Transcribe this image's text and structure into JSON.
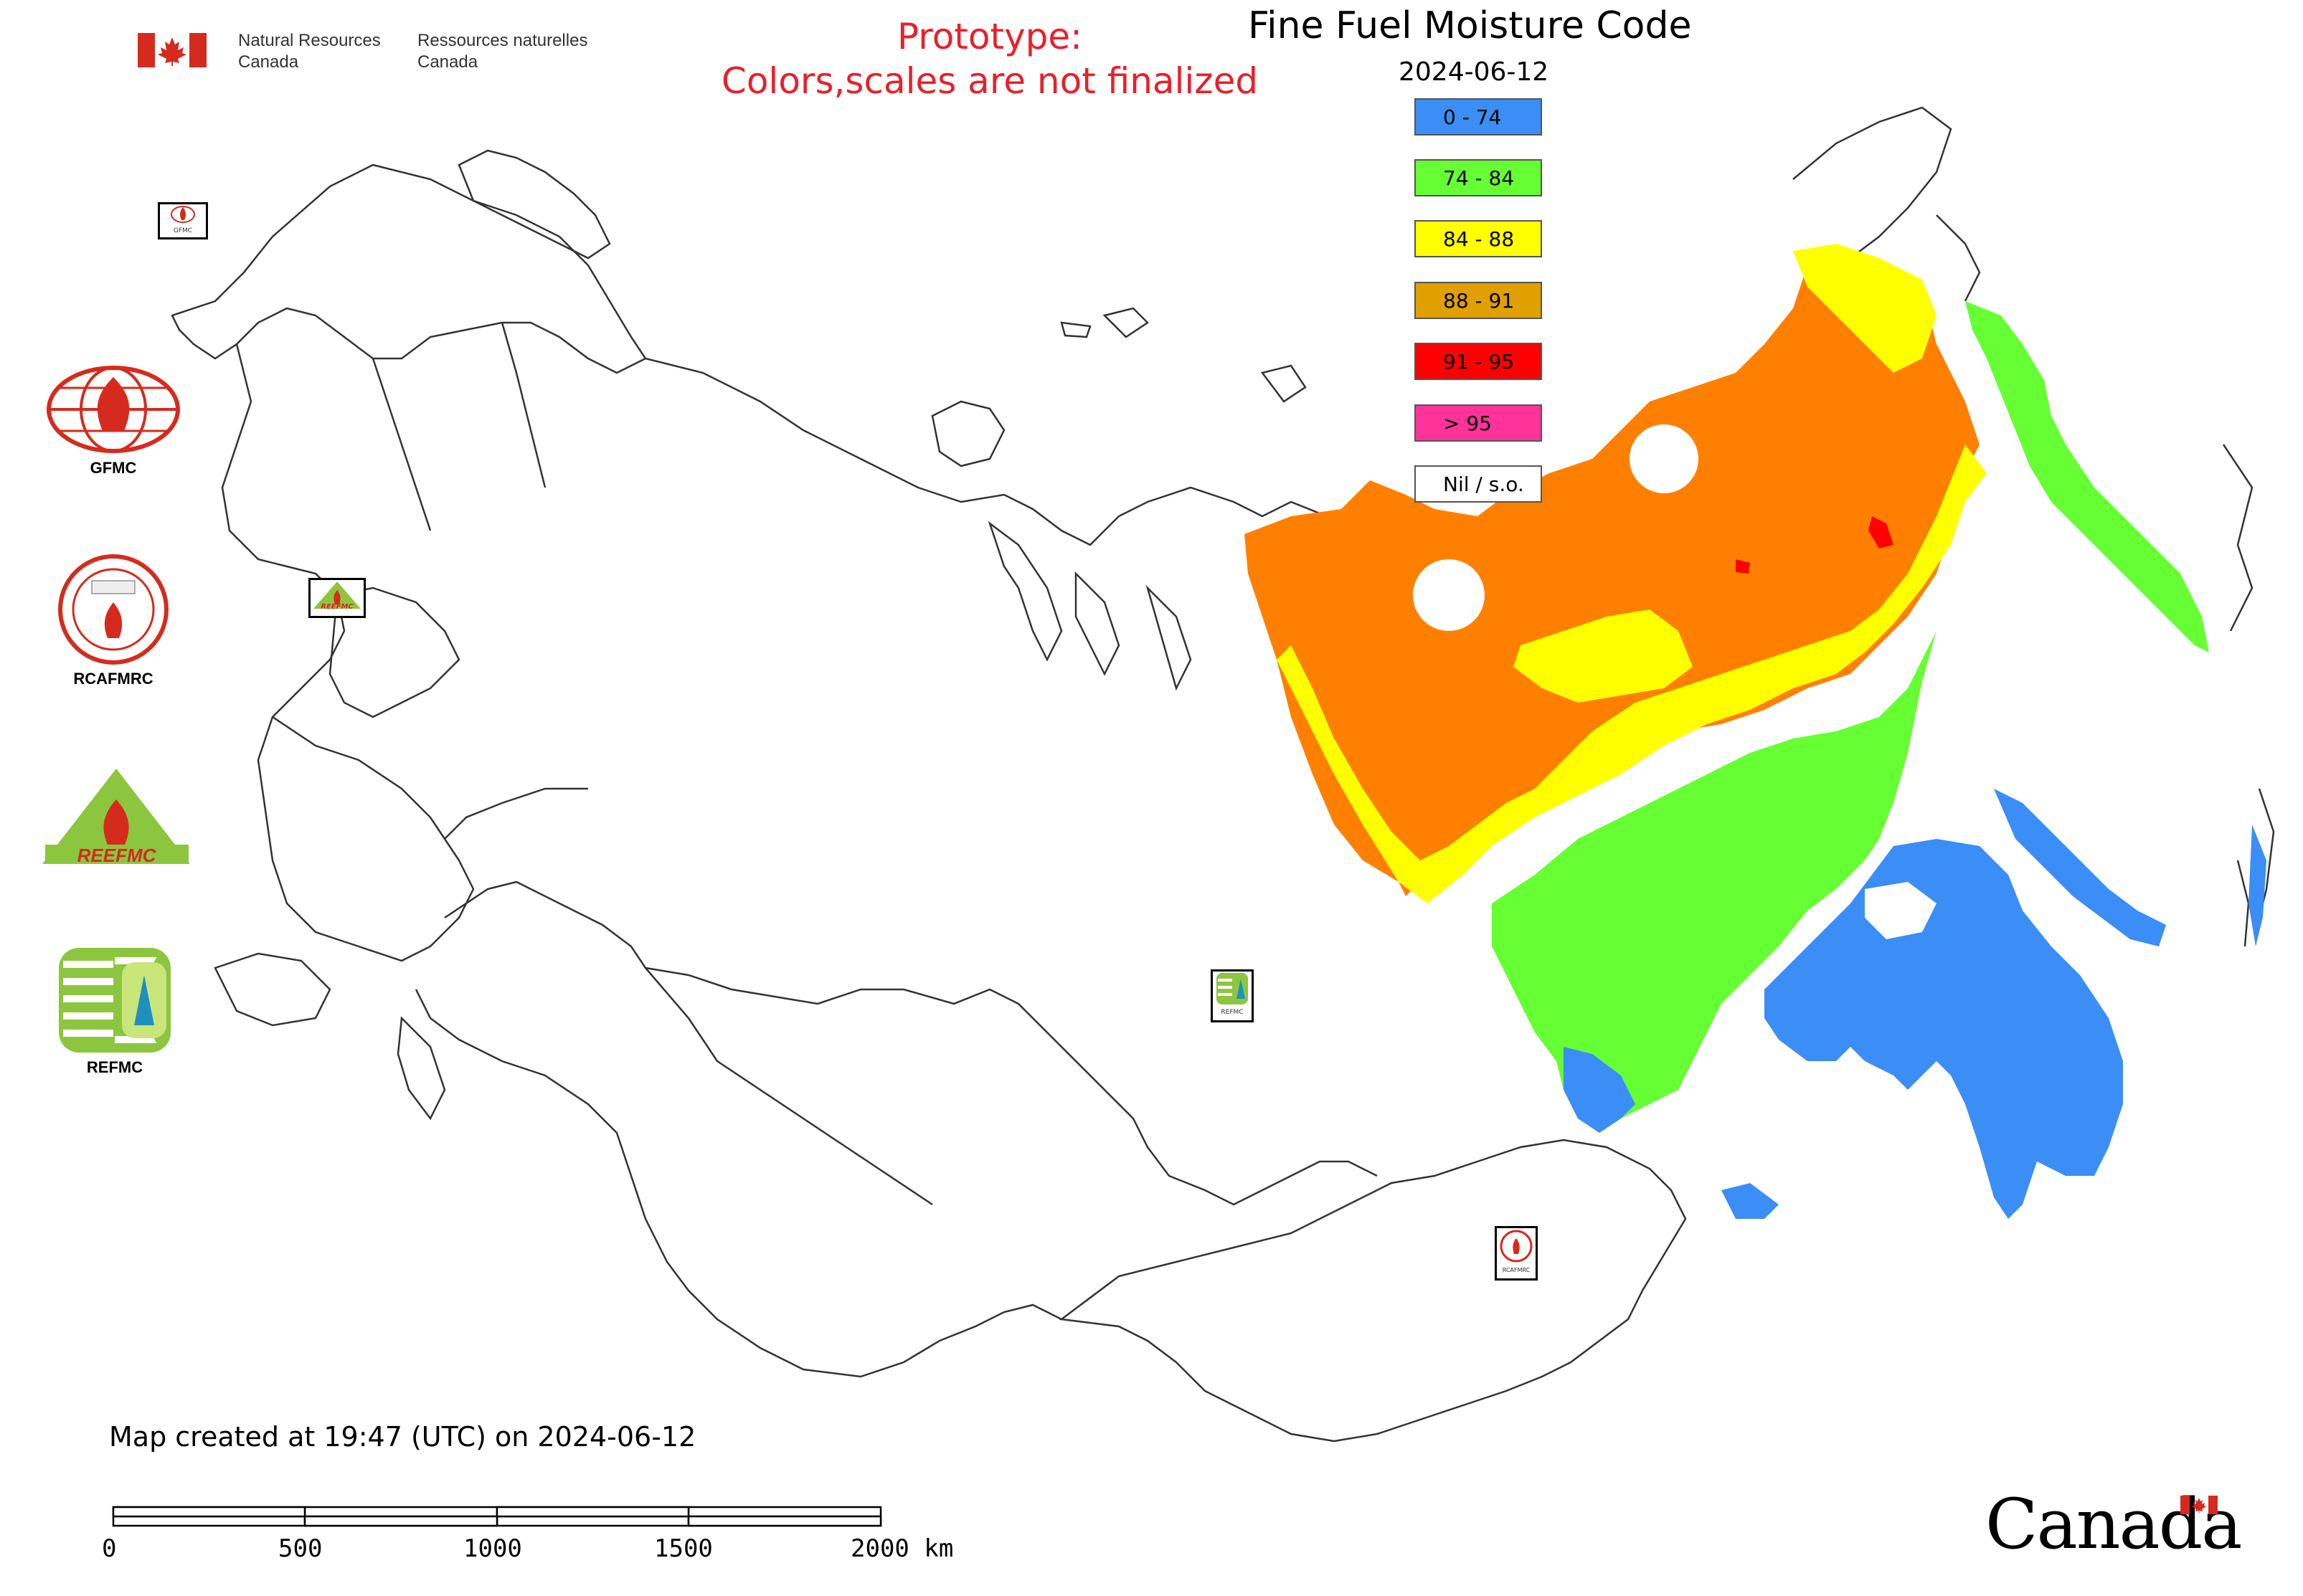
{
  "header": {
    "agency_en": "Natural Resources",
    "agency_en_2": "Canada",
    "agency_fr": "Ressources naturelles",
    "agency_fr_2": "Canada",
    "title": "Fine Fuel Moisture Code",
    "date": "2024-06-12",
    "prototype_line1": "Prototype:",
    "prototype_line2": "Colors,scales are not finalized"
  },
  "legend": {
    "items": [
      {
        "label": "0 - 74",
        "color": "#3a8ef6"
      },
      {
        "label": "74 - 84",
        "color": "#66ff33"
      },
      {
        "label": "84 - 88",
        "color": "#ffff00"
      },
      {
        "label": "88 - 91",
        "color": "#e0a000"
      },
      {
        "label": "91 - 95",
        "color": "#ff0000"
      },
      {
        "label": "> 95",
        "color": "#ff3399"
      },
      {
        "label": "Nil / s.o.",
        "color": "#ffffff"
      }
    ]
  },
  "logos": {
    "gfmc": "GFMC",
    "rcafmrc": "RCAFMRC",
    "reefmc_mark": "REEFMC",
    "refmc": "REFMC",
    "small_gfmc": "GFMC",
    "small_refmc": "REFMC",
    "small_rcafmrc": "RCAFMRC",
    "small_reefmc": "REEFMC"
  },
  "footer": {
    "created": "Map created at 19:47 (UTC) on 2024-06-12",
    "wordmark": "Canada"
  },
  "scalebar": {
    "ticks": [
      "0",
      "500",
      "1000",
      "1500",
      "2000 km"
    ]
  },
  "colors": {
    "prototype_red": "#e8202a",
    "flag_red": "#d52b1e",
    "orange_region": "#ff8000",
    "outline": "#333333"
  }
}
